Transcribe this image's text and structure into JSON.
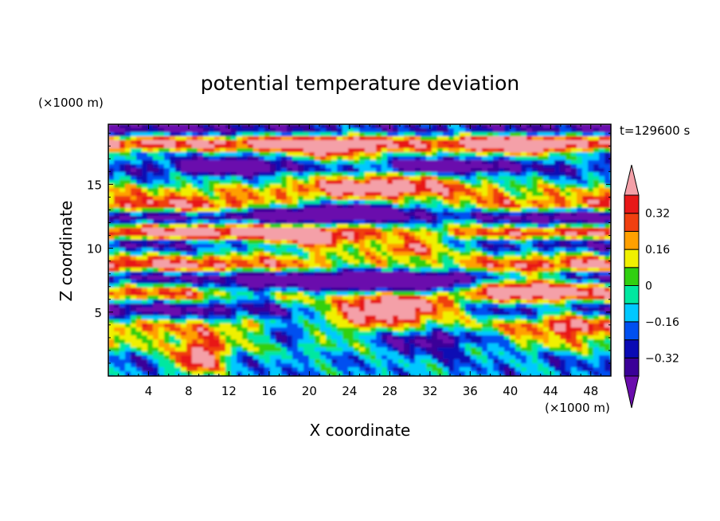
{
  "chart_data": {
    "type": "heatmap",
    "title": "potential temperature deviation",
    "time_label": "t=129600 s",
    "xlabel": "X coordinate",
    "ylabel": "Z coordinate",
    "x_unit": "(×1000 m)",
    "y_unit": "(×1000 m)",
    "xlim": [
      0,
      50
    ],
    "ylim": [
      0,
      19.7
    ],
    "x_ticks": [
      "4",
      "8",
      "12",
      "16",
      "20",
      "24",
      "28",
      "32",
      "36",
      "40",
      "44",
      "48"
    ],
    "x_tick_values": [
      4,
      8,
      12,
      16,
      20,
      24,
      28,
      32,
      36,
      40,
      44,
      48
    ],
    "y_ticks": [
      "5",
      "10",
      "15"
    ],
    "y_tick_values": [
      5,
      10,
      15
    ],
    "colorbar": {
      "levels": [
        -0.4,
        -0.32,
        -0.24,
        -0.16,
        -0.08,
        0,
        0.08,
        0.16,
        0.24,
        0.32,
        0.4
      ],
      "tick_labels": [
        "0.32",
        "0.16",
        "0",
        "−0.16",
        "−0.32"
      ],
      "tick_values": [
        0.32,
        0.16,
        0,
        -0.16,
        -0.32
      ],
      "colors": [
        "#6a0dad",
        "#3a0098",
        "#0a0ab4",
        "#0050f0",
        "#00c8ff",
        "#00e8a0",
        "#30d010",
        "#f0f000",
        "#ffa000",
        "#f04010",
        "#e81818",
        "#f4a0a8"
      ],
      "extend": "both"
    },
    "field_bands": [
      {
        "z": 1.2,
        "value": -0.2
      },
      {
        "z": 2.5,
        "value": 0.05
      },
      {
        "z": 3.8,
        "value": 0.22
      },
      {
        "z": 5.2,
        "value": -0.45
      },
      {
        "z": 6.5,
        "value": 0.3
      },
      {
        "z": 7.7,
        "value": -0.38
      },
      {
        "z": 8.7,
        "value": 0.42
      },
      {
        "z": 10.3,
        "value": -0.36
      },
      {
        "z": 11.2,
        "value": 0.45
      },
      {
        "z": 12.4,
        "value": -0.42
      },
      {
        "z": 13.4,
        "value": 0.38
      },
      {
        "z": 14.4,
        "value": 0.15
      },
      {
        "z": 15.3,
        "value": -0.1
      },
      {
        "z": 16.2,
        "value": -0.3
      },
      {
        "z": 17.2,
        "value": -0.12
      },
      {
        "z": 18.2,
        "value": 0.44
      },
      {
        "z": 19.3,
        "value": -0.42
      }
    ]
  }
}
